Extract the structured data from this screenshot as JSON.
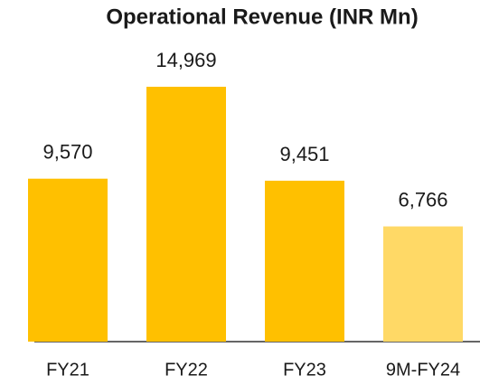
{
  "chart_data": {
    "type": "bar",
    "title": "Operational Revenue (INR Mn)",
    "categories": [
      "FY21",
      "FY22",
      "FY23",
      "9M-FY24"
    ],
    "values": [
      9570,
      14969,
      9451,
      6766
    ],
    "value_labels": [
      "9,570",
      "14,969",
      "9,451",
      "6,766"
    ],
    "colors": [
      "#ffc000",
      "#ffc000",
      "#ffc000",
      "#ffd966"
    ]
  }
}
